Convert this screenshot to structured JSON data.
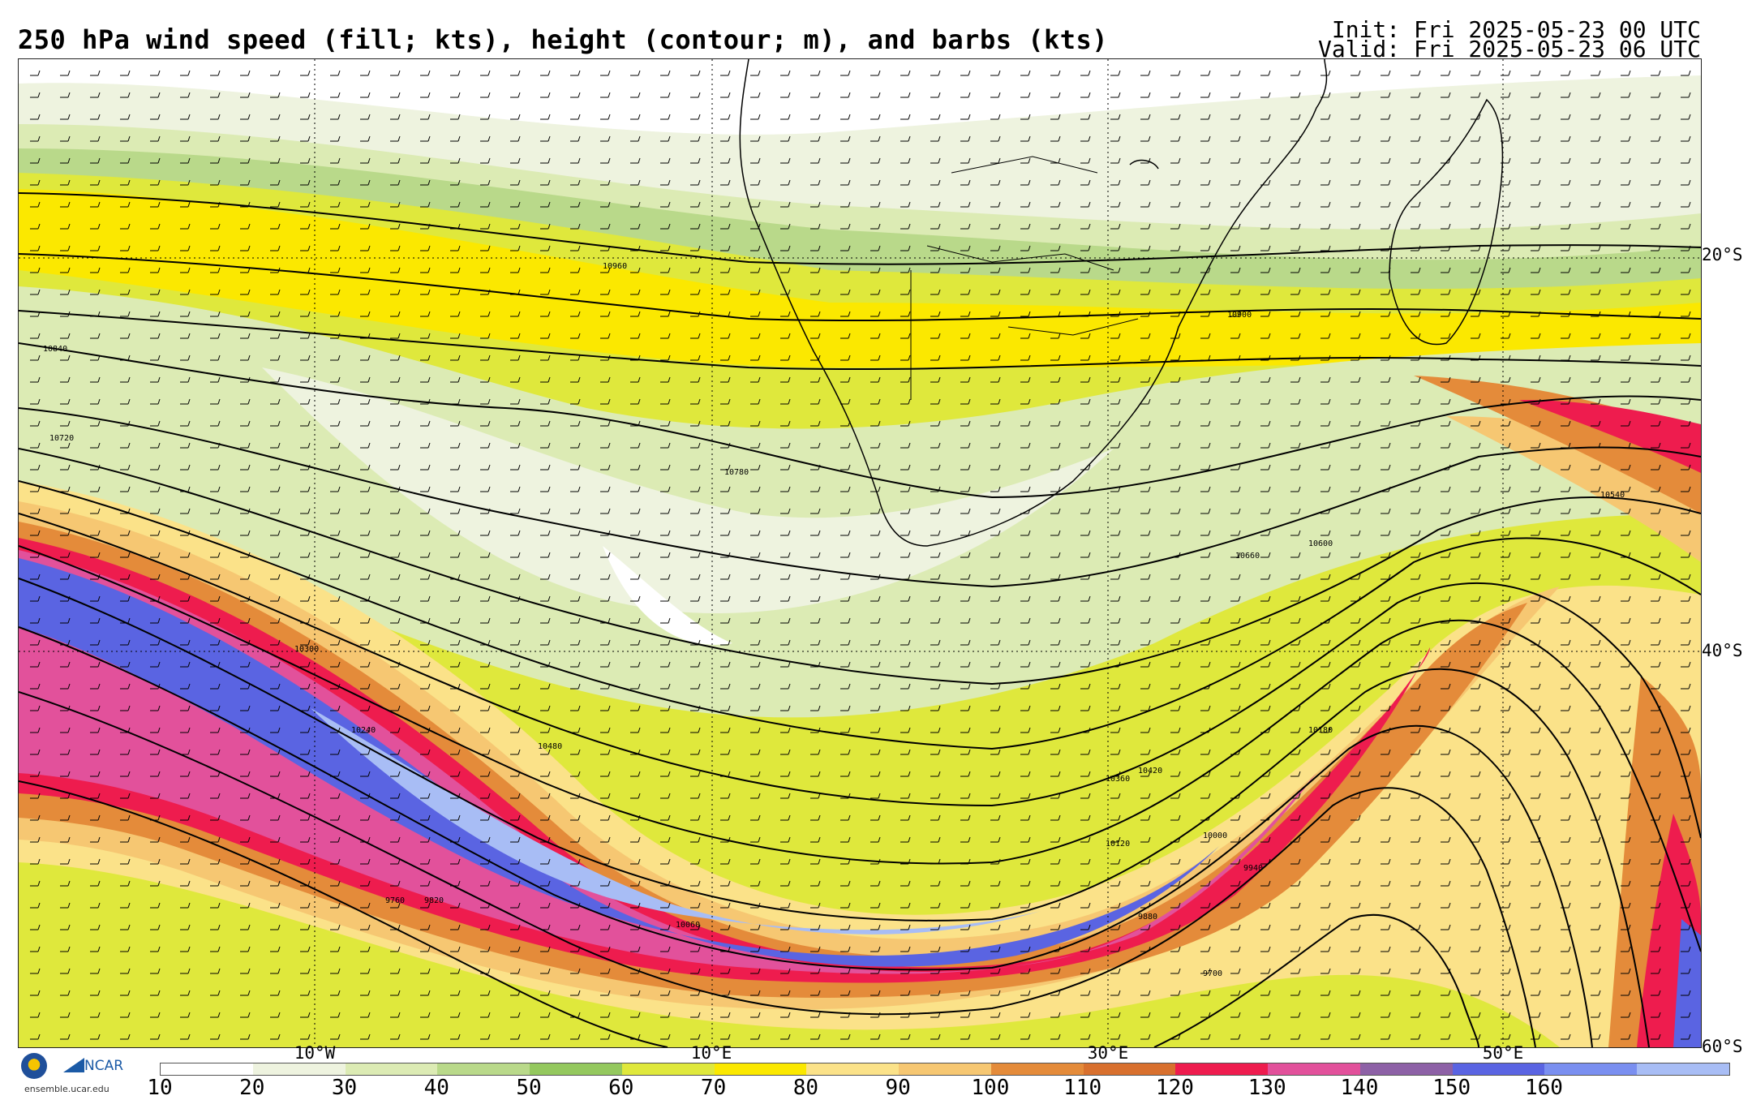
{
  "header": {
    "title": "250 hPa wind speed (fill; kts), height (contour; m), and barbs (kts)",
    "init": "Init: Fri 2025-05-23 00 UTC",
    "valid": "Valid: Fri 2025-05-23 06 UTC"
  },
  "map": {
    "lat_labels": [
      "20°S",
      "40°S",
      "60°S"
    ],
    "lon_labels": [
      "10°W",
      "10°E",
      "30°E",
      "50°E"
    ],
    "contour_labels": [
      "10960",
      "10900",
      "10840",
      "10780",
      "10720",
      "10660",
      "10600",
      "10540",
      "10480",
      "10420",
      "10360",
      "10300",
      "10240",
      "10180",
      "10120",
      "10060",
      "10000",
      "9940",
      "9880",
      "9820",
      "9760",
      "9700"
    ]
  },
  "colorbar": {
    "ticks": [
      "10",
      "20",
      "30",
      "40",
      "50",
      "60",
      "70",
      "80",
      "90",
      "100",
      "110",
      "120",
      "130",
      "140",
      "150",
      "160"
    ],
    "colors": [
      "#ffffff",
      "#eef3df",
      "#dcebb4",
      "#b9d98a",
      "#94c85e",
      "#dfe83c",
      "#fbe800",
      "#fbe289",
      "#f6c772",
      "#e48b3a",
      "#d8702e",
      "#ee1c4e",
      "#e2519b",
      "#8d61a6",
      "#5a64e2",
      "#7a8ff0",
      "#a8bdf5"
    ]
  },
  "footer": {
    "org": "NCAR",
    "url": "ensemble.ucar.edu"
  }
}
